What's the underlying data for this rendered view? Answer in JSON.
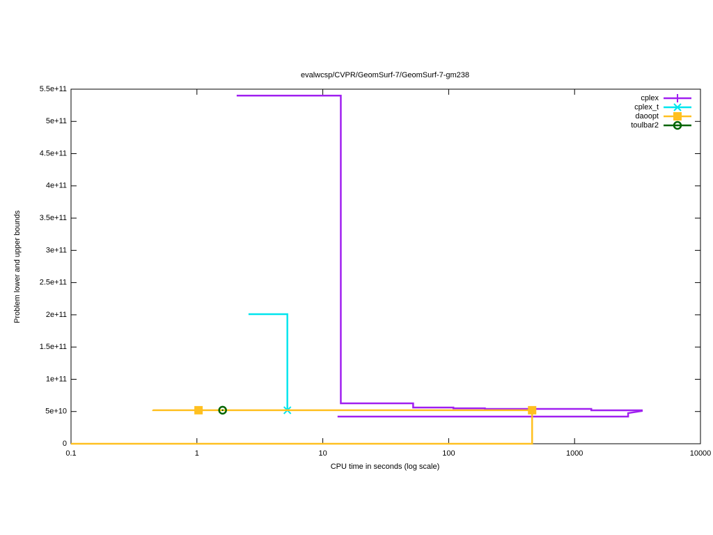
{
  "chart_data": {
    "type": "line",
    "title": "evalwcsp/CVPR/GeomSurf-7/GeomSurf-7-gm238",
    "xlabel": "CPU time in seconds (log scale)",
    "ylabel": "Problem lower and upper bounds",
    "xscale": "log",
    "xlim": [
      0.1,
      10000
    ],
    "xticks": [
      0.1,
      1,
      10,
      100,
      1000,
      10000
    ],
    "ylim": [
      0,
      550000000000
    ],
    "yticks": [
      0,
      {
        "value": 50000000000,
        "label": "5e+10"
      },
      {
        "value": 100000000000,
        "label": "1e+11"
      },
      {
        "value": 150000000000,
        "label": "1.5e+11"
      },
      {
        "value": 200000000000,
        "label": "2e+11"
      },
      {
        "value": 250000000000,
        "label": "2.5e+11"
      },
      {
        "value": 300000000000,
        "label": "3e+11"
      },
      {
        "value": 350000000000,
        "label": "3.5e+11"
      },
      {
        "value": 400000000000,
        "label": "4e+11"
      },
      {
        "value": 450000000000,
        "label": "4.5e+11"
      },
      {
        "value": 500000000000,
        "label": "5e+11"
      },
      {
        "value": 550000000000,
        "label": "5.5e+11"
      }
    ],
    "legend": "top-right",
    "series": [
      {
        "name": "cplex",
        "color": "#a020f0",
        "marker": "plus",
        "x": [
          2.07,
          13.9,
          13.9,
          52.2,
          52.2,
          109,
          109,
          194,
          194,
          1358,
          1358,
          3475
        ],
        "values": [
          540000000000,
          540000000000,
          62700000000,
          62700000000,
          56200000000,
          56200000000,
          55000000000,
          55000000000,
          54000000000,
          54000000000,
          51900000000,
          51900000000
        ],
        "lower_x": [
          13.1,
          2663,
          2663,
          3475
        ],
        "lower_values": [
          42100000000,
          42100000000,
          47500000000,
          51000000000
        ],
        "marker_x": [],
        "marker_values": []
      },
      {
        "name": "cplex_t",
        "color": "#00e5ee",
        "marker": "cross",
        "x": [
          2.57,
          5.23,
          5.23
        ],
        "values": [
          201000000000,
          201000000000,
          51900000000
        ],
        "marker_x": [
          5.23
        ],
        "marker_values": [
          51900000000
        ]
      },
      {
        "name": "daoopt",
        "color": "#ffc020",
        "marker": "square",
        "x": [
          0.449,
          0.449,
          460
        ],
        "values": [
          52800000000,
          52000000000,
          52000000000
        ],
        "lower_x": [
          0.1,
          460,
          460
        ],
        "lower_values": [
          0,
          0,
          52000000000
        ],
        "marker_x": [
          1.03,
          460
        ],
        "marker_values": [
          52000000000,
          52000000000
        ]
      },
      {
        "name": "toulbar2",
        "color": "#006400",
        "marker": "circle",
        "x": [],
        "values": [],
        "marker_x": [
          1.6
        ],
        "marker_values": [
          52000000000
        ]
      }
    ]
  }
}
